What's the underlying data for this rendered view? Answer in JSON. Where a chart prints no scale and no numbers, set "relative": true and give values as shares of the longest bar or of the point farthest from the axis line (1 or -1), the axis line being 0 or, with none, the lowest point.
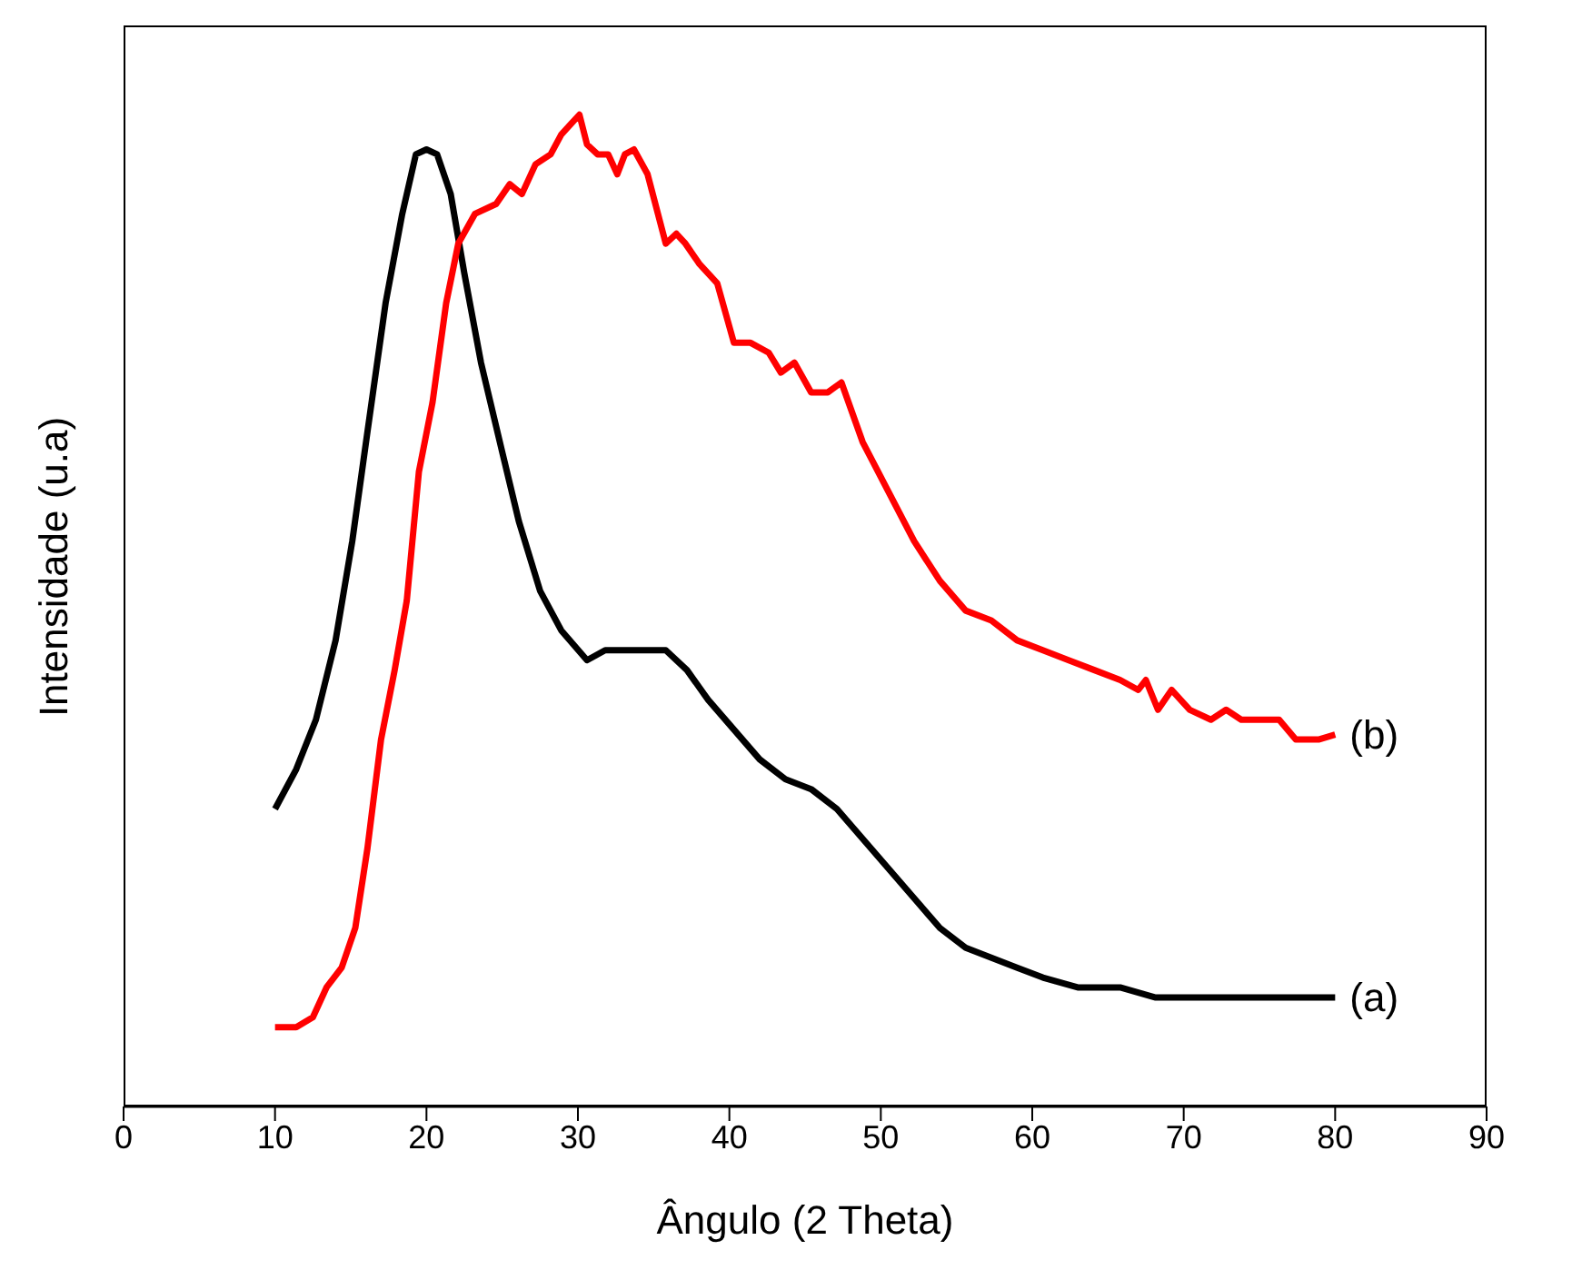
{
  "chart_data": {
    "type": "line",
    "relative": true,
    "xlabel": "Ângulo (2 Theta)",
    "ylabel": "Intensidade (u.a)",
    "xlim": [
      0,
      90
    ],
    "xticks": [
      0,
      10,
      20,
      30,
      40,
      50,
      60,
      70,
      80,
      90
    ],
    "marker": "none",
    "line_style": "solid",
    "series": [
      {
        "color": "#000000",
        "x": [
          10,
          11.4,
          12.7,
          14.0,
          15.1,
          16.1,
          17.3,
          18.4,
          19.3,
          20.0,
          20.7,
          21.6,
          22.5,
          23.6,
          25.0,
          26.1,
          27.5,
          28.9,
          30.6,
          31.8,
          34.1,
          35.8,
          37.2,
          38.6,
          40.3,
          42.0,
          43.7,
          45.4,
          47.1,
          48.8,
          50.5,
          52.2,
          53.9,
          55.6,
          57.3,
          59.0,
          60.7,
          63.0,
          65.8,
          68.1,
          71.5,
          74.9,
          77.7,
          80
        ],
        "values": [
          0.3,
          0.34,
          0.39,
          0.47,
          0.57,
          0.68,
          0.81,
          0.9,
          0.96,
          0.965,
          0.96,
          0.92,
          0.84,
          0.75,
          0.66,
          0.59,
          0.52,
          0.48,
          0.45,
          0.46,
          0.46,
          0.46,
          0.44,
          0.41,
          0.38,
          0.35,
          0.33,
          0.32,
          0.3,
          0.27,
          0.24,
          0.21,
          0.18,
          0.16,
          0.15,
          0.14,
          0.13,
          0.12,
          0.12,
          0.11,
          0.11,
          0.11,
          0.11,
          0.11
        ]
      },
      {
        "color": "#ff0000",
        "x": [
          10,
          11.4,
          12.5,
          13.4,
          14.4,
          15.3,
          16.1,
          17.0,
          17.9,
          18.7,
          19.5,
          20.4,
          21.3,
          22.1,
          23.2,
          24.6,
          25.5,
          26.3,
          27.2,
          28.2,
          28.9,
          29.5,
          30.1,
          30.6,
          31.3,
          32.0,
          32.6,
          33.1,
          33.7,
          34.6,
          35.8,
          36.5,
          37.1,
          38.0,
          39.2,
          40.3,
          41.4,
          42.6,
          43.4,
          44.3,
          45.4,
          46.5,
          47.4,
          48.8,
          50.5,
          52.2,
          53.9,
          55.6,
          57.3,
          59.0,
          60.7,
          62.4,
          64.1,
          65.8,
          67.0,
          67.5,
          68.3,
          69.2,
          70.4,
          71.8,
          72.8,
          73.8,
          75.5,
          76.3,
          77.4,
          78.9,
          80
        ],
        "values": [
          0.08,
          0.08,
          0.09,
          0.12,
          0.14,
          0.18,
          0.26,
          0.37,
          0.44,
          0.51,
          0.64,
          0.71,
          0.81,
          0.87,
          0.9,
          0.91,
          0.93,
          0.92,
          0.95,
          0.96,
          0.98,
          0.99,
          1.0,
          0.97,
          0.96,
          0.96,
          0.94,
          0.96,
          0.965,
          0.94,
          0.87,
          0.88,
          0.87,
          0.85,
          0.83,
          0.77,
          0.77,
          0.76,
          0.74,
          0.75,
          0.72,
          0.72,
          0.73,
          0.67,
          0.62,
          0.57,
          0.53,
          0.5,
          0.49,
          0.47,
          0.46,
          0.45,
          0.44,
          0.43,
          0.42,
          0.43,
          0.4,
          0.42,
          0.4,
          0.39,
          0.4,
          0.39,
          0.39,
          0.39,
          0.37,
          0.37,
          0.375
        ]
      }
    ],
    "annotations": [
      {
        "text": "(a)",
        "x": 80,
        "y": 0.11
      },
      {
        "text": "(b)",
        "x": 80,
        "y": 0.375
      }
    ]
  }
}
